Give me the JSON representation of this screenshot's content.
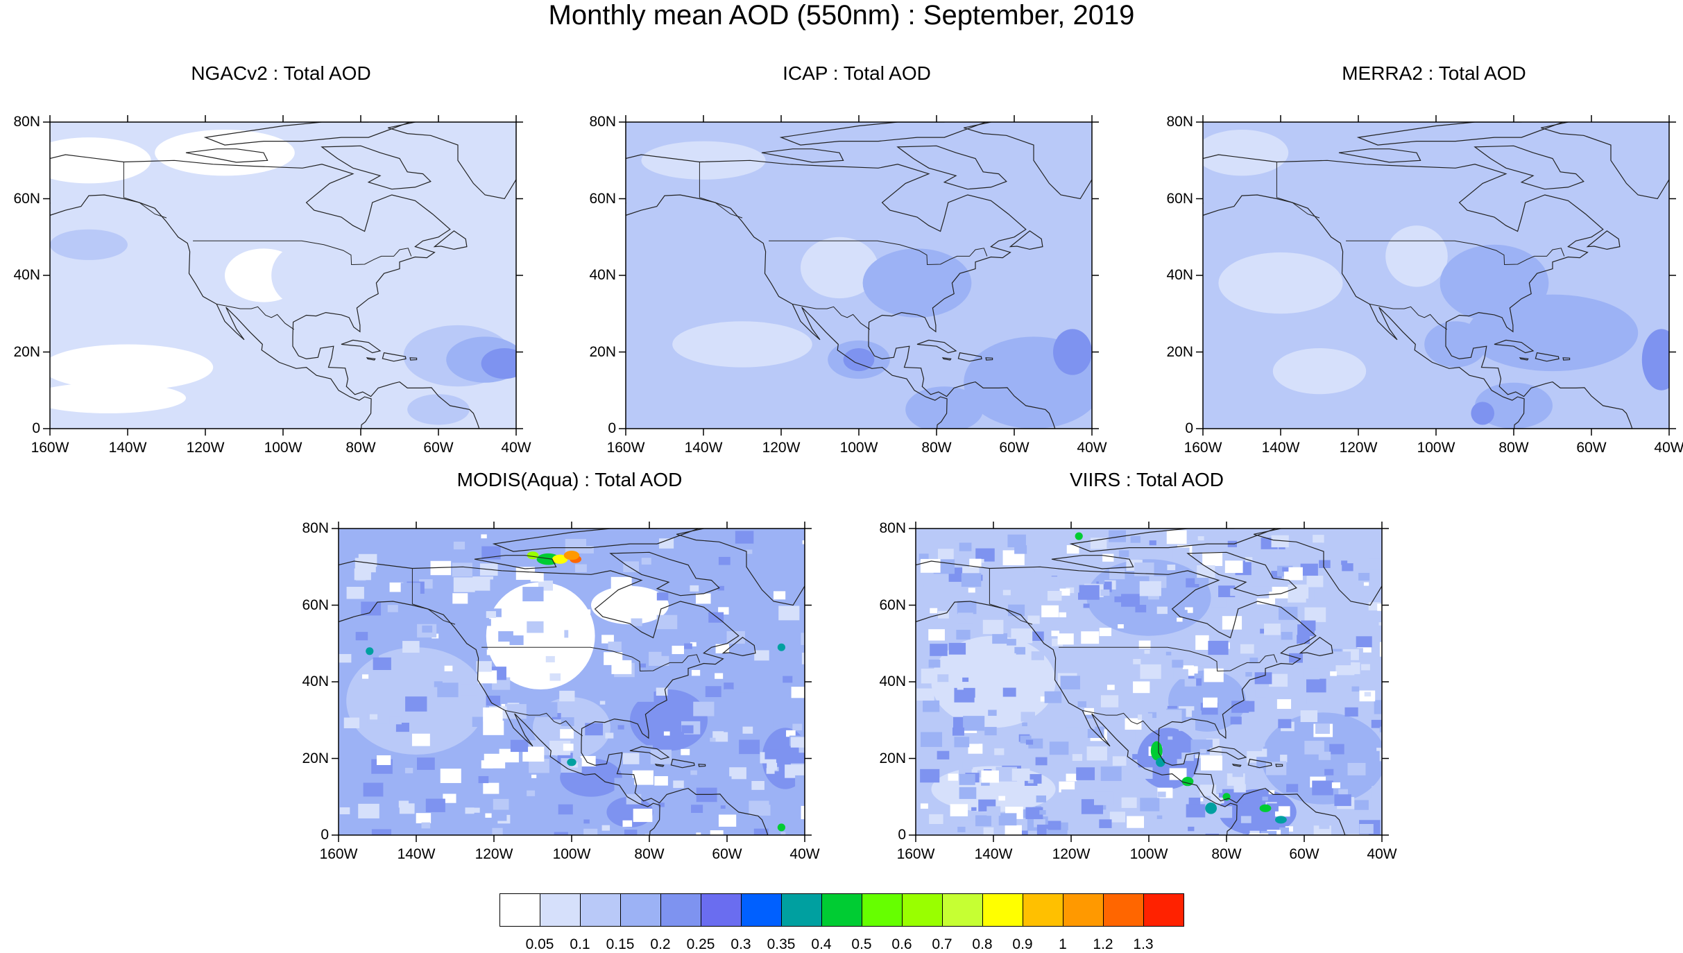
{
  "title": "Monthly mean AOD (550nm) : September, 2019",
  "panels": [
    {
      "title": "NGACv2 : Total AOD"
    },
    {
      "title": "ICAP : Total AOD"
    },
    {
      "title": "MERRA2 : Total AOD"
    },
    {
      "title": "MODIS(Aqua) : Total AOD"
    },
    {
      "title": "VIIRS : Total AOD"
    }
  ],
  "lat_labels": [
    "80N",
    "60N",
    "40N",
    "20N",
    "0"
  ],
  "lon_labels": [
    "160W",
    "140W",
    "120W",
    "100W",
    "80W",
    "60W",
    "40W"
  ],
  "colorbar": {
    "colors": [
      "#ffffff",
      "#d6e0fb",
      "#b9c9f8",
      "#9cb2f5",
      "#7e93f0",
      "#6a6df0",
      "#0060ff",
      "#00a0a0",
      "#00cc33",
      "#66ff00",
      "#99ff00",
      "#c6ff33",
      "#ffff00",
      "#ffc000",
      "#ff9900",
      "#ff6600",
      "#ff2200"
    ],
    "tick_labels": [
      "0.05",
      "0.1",
      "0.15",
      "0.2",
      "0.25",
      "0.3",
      "0.35",
      "0.4",
      "0.5",
      "0.6",
      "0.7",
      "0.8",
      "0.9",
      "1",
      "1.2",
      "1.3"
    ]
  }
}
